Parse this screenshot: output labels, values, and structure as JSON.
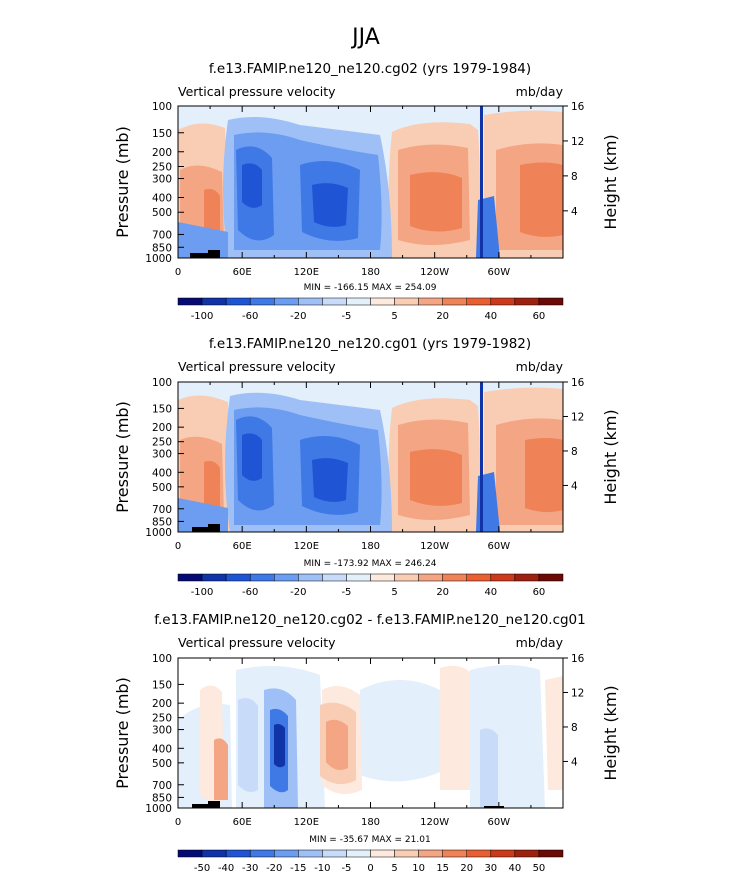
{
  "page_title": "JJA",
  "chart_data": [
    {
      "type": "heatmap",
      "title": "f.e13.FAMIP.ne120_ne120.cg02 (yrs 1979-1984)",
      "left_label": "Vertical pressure velocity",
      "right_label": "mb/day",
      "ylabel": "Pressure (mb)",
      "y2label": "Height (km)",
      "x_ticks": [
        "0",
        "60E",
        "120E",
        "180",
        "120W",
        "60W"
      ],
      "y_ticks": [
        "100",
        "150",
        "200",
        "250",
        "300",
        "400",
        "500",
        "700",
        "850",
        "1000"
      ],
      "y2_ticks": [
        "16",
        "12",
        "8",
        "4"
      ],
      "stats": "MIN = -166.15  MAX = 254.09",
      "colorbar_labels": [
        "-100",
        "-60",
        "-20",
        "-5",
        "5",
        "20",
        "40",
        "60"
      ]
    },
    {
      "type": "heatmap",
      "title": "f.e13.FAMIP.ne120_ne120.cg01 (yrs 1979-1982)",
      "left_label": "Vertical pressure velocity",
      "right_label": "mb/day",
      "ylabel": "Pressure (mb)",
      "y2label": "Height (km)",
      "x_ticks": [
        "0",
        "60E",
        "120E",
        "180",
        "120W",
        "60W"
      ],
      "y_ticks": [
        "100",
        "150",
        "200",
        "250",
        "300",
        "400",
        "500",
        "700",
        "850",
        "1000"
      ],
      "y2_ticks": [
        "16",
        "12",
        "8",
        "4"
      ],
      "stats": "MIN = -173.92  MAX = 246.24",
      "colorbar_labels": [
        "-100",
        "-60",
        "-20",
        "-5",
        "5",
        "20",
        "40",
        "60"
      ]
    },
    {
      "type": "heatmap",
      "title": "f.e13.FAMIP.ne120_ne120.cg02 - f.e13.FAMIP.ne120_ne120.cg01",
      "left_label": "Vertical pressure velocity",
      "right_label": "mb/day",
      "ylabel": "Pressure (mb)",
      "y2label": "Height (km)",
      "x_ticks": [
        "0",
        "60E",
        "120E",
        "180",
        "120W",
        "60W"
      ],
      "y_ticks": [
        "100",
        "150",
        "200",
        "250",
        "300",
        "400",
        "500",
        "700",
        "850",
        "1000"
      ],
      "y2_ticks": [
        "16",
        "12",
        "8",
        "4"
      ],
      "stats": "MIN = -35.67  MAX = 21.01",
      "colorbar_labels": [
        "-50",
        "-40",
        "-30",
        "-20",
        "-15",
        "-10",
        "-5",
        "0",
        "5",
        "10",
        "15",
        "20",
        "30",
        "40",
        "50"
      ]
    }
  ],
  "colors": {
    "neg": [
      "#050a74",
      "#1033a8",
      "#1f55d4",
      "#3f79e6",
      "#6c9df0",
      "#9fc0f6",
      "#c8dcfa",
      "#e4effc"
    ],
    "pos": [
      "#fde9de",
      "#f9cdb3",
      "#f4a584",
      "#ef8257",
      "#e95f32",
      "#cc3a1b",
      "#9e2010",
      "#6c0b05"
    ]
  }
}
